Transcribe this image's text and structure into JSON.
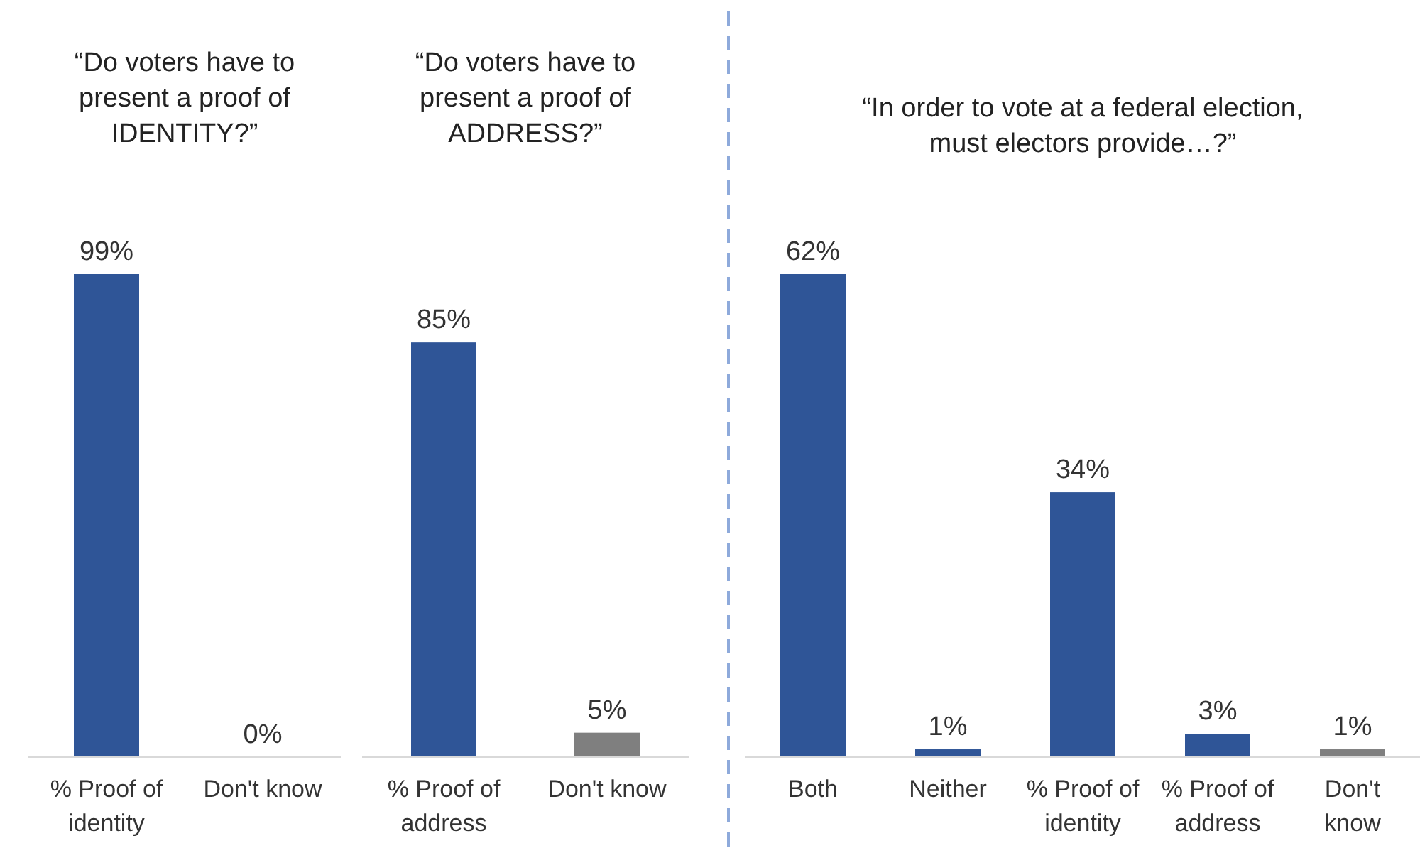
{
  "chart_data": [
    {
      "type": "bar",
      "title": "“Do voters have to present a proof of IDENTITY?”",
      "categories": [
        "% Proof of identity",
        "Don't know"
      ],
      "values": [
        99,
        0
      ],
      "colors": [
        "#2f5597",
        "#7f7f7f"
      ],
      "value_labels": [
        "99%",
        "0%"
      ]
    },
    {
      "type": "bar",
      "title": "“Do voters have to present a proof of ADDRESS?”",
      "categories": [
        "% Proof of address",
        "Don't know"
      ],
      "values": [
        85,
        5
      ],
      "colors": [
        "#2f5597",
        "#7f7f7f"
      ],
      "value_labels": [
        "85%",
        "5%"
      ]
    },
    {
      "type": "bar",
      "title": "“In order to vote at a federal election, must electors provide…?”",
      "categories": [
        "Both",
        "Neither",
        "% Proof of identity",
        "% Proof of address",
        "Don't know"
      ],
      "values": [
        62,
        1,
        34,
        3,
        1
      ],
      "colors": [
        "#2f5597",
        "#2f5597",
        "#2f5597",
        "#2f5597",
        "#7f7f7f"
      ],
      "value_labels": [
        "62%",
        "1%",
        "34%",
        "3%",
        "1%"
      ]
    }
  ]
}
